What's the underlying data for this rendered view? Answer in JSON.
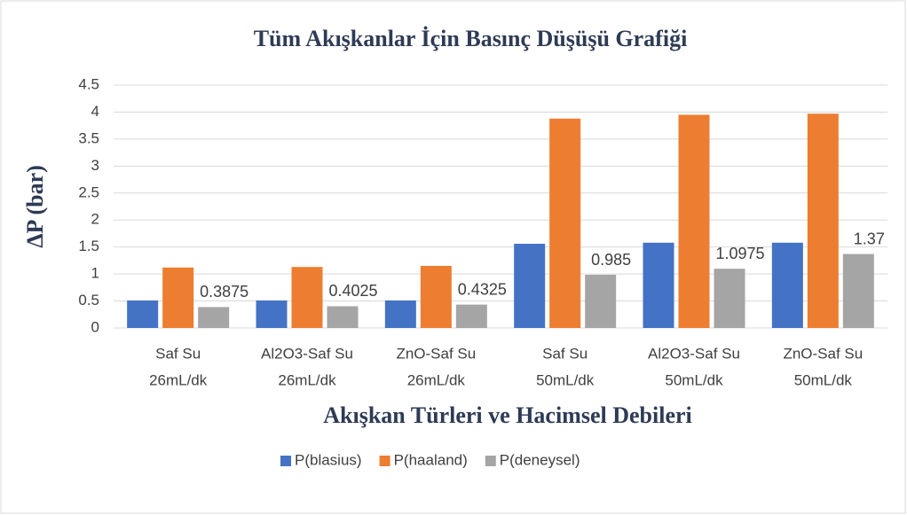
{
  "chart_data": {
    "type": "bar",
    "title": "Tüm Akışkanlar İçin Basınç Düşüşü Grafiği",
    "x_label": "Akışkan Türleri ve Hacimsel Debileri",
    "y_label": "ΔP (bar)",
    "categories": [
      [
        "Saf Su",
        "26mL/dk"
      ],
      [
        "Al2O3-Saf Su",
        "26mL/dk"
      ],
      [
        "ZnO-Saf Su",
        "26mL/dk"
      ],
      [
        "Saf Su",
        "50mL/dk"
      ],
      [
        "Al2O3-Saf Su",
        "50mL/dk"
      ],
      [
        "ZnO-Saf Su",
        "50mL/dk"
      ]
    ],
    "series": [
      {
        "name": "P(blasius)",
        "color": "#4472c4",
        "values": [
          0.51,
          0.51,
          0.51,
          1.56,
          1.58,
          1.58
        ]
      },
      {
        "name": "P(haaland)",
        "color": "#ed7d31",
        "values": [
          1.12,
          1.13,
          1.15,
          3.88,
          3.95,
          3.97
        ]
      },
      {
        "name": "P(deneysel)",
        "color": "#a5a5a5",
        "values": [
          0.3875,
          0.4025,
          0.4325,
          0.985,
          1.0975,
          1.37
        ],
        "show_labels": true
      }
    ],
    "ylim": [
      0,
      4.5
    ],
    "yticks": [
      0,
      0.5,
      1,
      1.5,
      2,
      2.5,
      3,
      3.5,
      4,
      4.5
    ],
    "grid": true,
    "legend": "bottom"
  }
}
